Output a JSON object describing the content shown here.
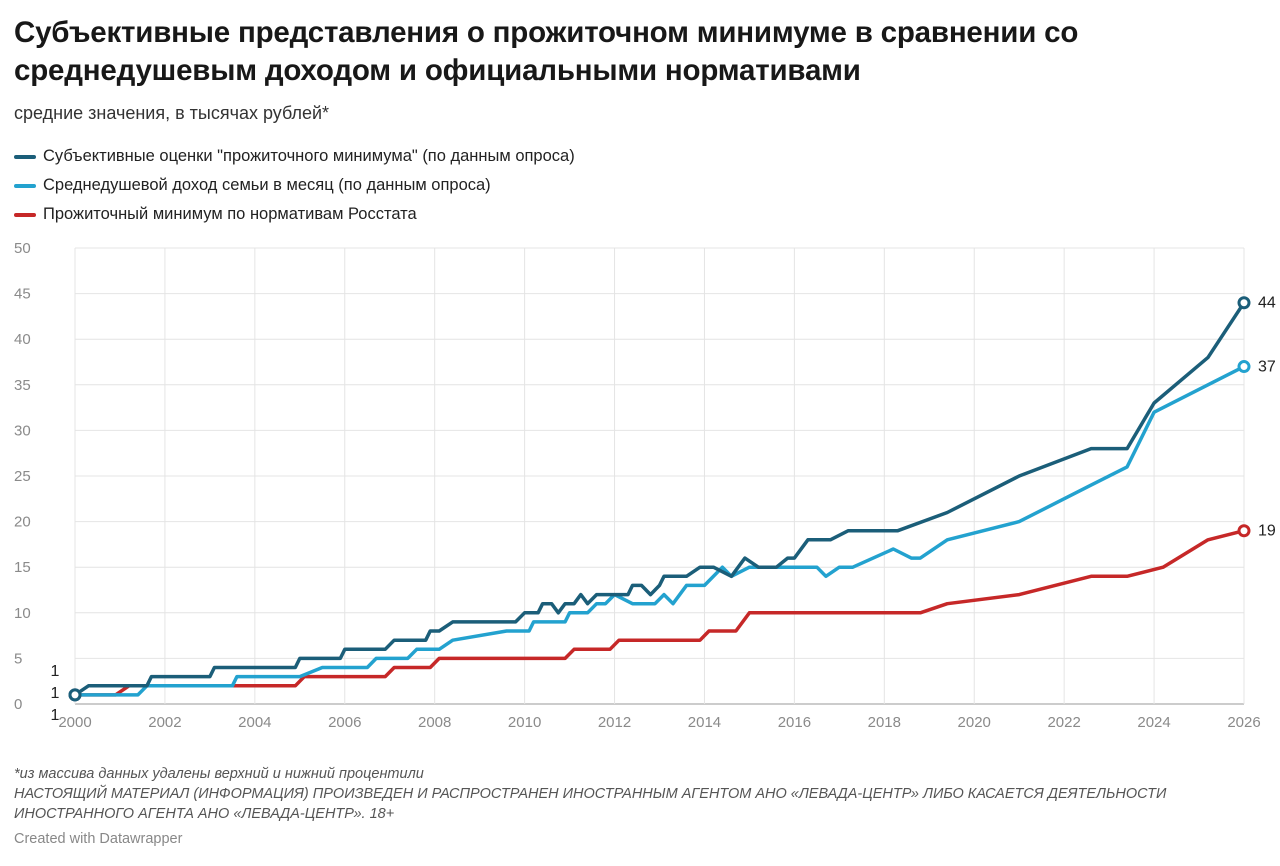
{
  "title": "Субъективные представления о прожиточном минимуме в сравнении со среднедушевым доходом и официальными нормативами",
  "subtitle": "средние значения, в тысячах рублей*",
  "notes": {
    "line1": "*из массива данных удалены верхний и нижний процентили",
    "line2": "НАСТОЯЩИЙ МАТЕРИАЛ (ИНФОРМАЦИЯ) ПРОИЗВЕДЕН И РАСПРОСТРАНЕН ИНОСТРАННЫМ АГЕНТОМ АНО «ЛЕВАДА-ЦЕНТР» ЛИБО КАСАЕТСЯ ДЕЯТЕЛЬНОСТИ ИНОСТРАННОГО АГЕНТА АНО «ЛЕВАДА-ЦЕНТР». 18+"
  },
  "credit": "Created with Datawrapper",
  "chart_data": {
    "type": "line",
    "xlim": [
      2000,
      2026
    ],
    "ylim": [
      0,
      50
    ],
    "yticks": [
      0,
      5,
      10,
      15,
      20,
      25,
      30,
      35,
      40,
      45,
      50
    ],
    "xticks": [
      2000,
      2002,
      2004,
      2006,
      2008,
      2010,
      2012,
      2014,
      2016,
      2018,
      2020,
      2022,
      2024,
      2026
    ],
    "grid": true,
    "legend_position": "top-left",
    "series": [
      {
        "name": "Субъективные оценки \"прожиточного минимума\" (по данным опроса)",
        "color": "#1b5e79",
        "start_label": "1",
        "end_label": "44",
        "points": [
          [
            2000,
            1
          ],
          [
            2000.3,
            2
          ],
          [
            2001,
            2
          ],
          [
            2001.6,
            2
          ],
          [
            2001.7,
            3
          ],
          [
            2003,
            3
          ],
          [
            2003.1,
            4
          ],
          [
            2004.9,
            4
          ],
          [
            2005,
            5
          ],
          [
            2005.9,
            5
          ],
          [
            2006,
            6
          ],
          [
            2006.9,
            6
          ],
          [
            2007.1,
            7
          ],
          [
            2007.8,
            7
          ],
          [
            2007.9,
            8
          ],
          [
            2008.1,
            8
          ],
          [
            2008.4,
            9
          ],
          [
            2009.8,
            9
          ],
          [
            2010,
            10
          ],
          [
            2010.3,
            10
          ],
          [
            2010.4,
            11
          ],
          [
            2010.6,
            11
          ],
          [
            2010.75,
            10
          ],
          [
            2010.9,
            11
          ],
          [
            2011.1,
            11
          ],
          [
            2011.25,
            12
          ],
          [
            2011.4,
            11
          ],
          [
            2011.6,
            12
          ],
          [
            2012.3,
            12
          ],
          [
            2012.4,
            13
          ],
          [
            2012.6,
            13
          ],
          [
            2012.8,
            12
          ],
          [
            2013,
            13
          ],
          [
            2013.1,
            14
          ],
          [
            2013.6,
            14
          ],
          [
            2013.9,
            15
          ],
          [
            2014.2,
            15
          ],
          [
            2014.6,
            14
          ],
          [
            2014.9,
            16
          ],
          [
            2015.2,
            15
          ],
          [
            2015.6,
            15
          ],
          [
            2015.85,
            16
          ],
          [
            2016,
            16
          ],
          [
            2016.3,
            18
          ],
          [
            2016.8,
            18
          ],
          [
            2017.2,
            19
          ],
          [
            2018.3,
            19
          ],
          [
            2019.4,
            21
          ],
          [
            2021,
            25
          ],
          [
            2022.6,
            28
          ],
          [
            2023.4,
            28
          ],
          [
            2024,
            33
          ],
          [
            2025.2,
            38
          ],
          [
            2026,
            44
          ]
        ]
      },
      {
        "name": "Среднедушевой доход семьи в месяц (по данным опроса)",
        "color": "#23a2cf",
        "start_label": "1",
        "end_label": "37",
        "points": [
          [
            2000,
            1
          ],
          [
            2001.4,
            1
          ],
          [
            2001.6,
            2
          ],
          [
            2003.5,
            2
          ],
          [
            2003.6,
            3
          ],
          [
            2005,
            3
          ],
          [
            2005.5,
            4
          ],
          [
            2006.5,
            4
          ],
          [
            2006.7,
            5
          ],
          [
            2007.4,
            5
          ],
          [
            2007.6,
            6
          ],
          [
            2008.1,
            6
          ],
          [
            2008.4,
            7
          ],
          [
            2009.6,
            8
          ],
          [
            2010.1,
            8
          ],
          [
            2010.2,
            9
          ],
          [
            2010.9,
            9
          ],
          [
            2011,
            10
          ],
          [
            2011.4,
            10
          ],
          [
            2011.6,
            11
          ],
          [
            2011.8,
            11
          ],
          [
            2012,
            12
          ],
          [
            2012.4,
            11
          ],
          [
            2012.9,
            11
          ],
          [
            2013.1,
            12
          ],
          [
            2013.3,
            11
          ],
          [
            2013.6,
            13
          ],
          [
            2014,
            13
          ],
          [
            2014.4,
            15
          ],
          [
            2014.6,
            14
          ],
          [
            2015,
            15
          ],
          [
            2016.5,
            15
          ],
          [
            2016.7,
            14
          ],
          [
            2017,
            15
          ],
          [
            2017.3,
            15
          ],
          [
            2018.2,
            17
          ],
          [
            2018.6,
            16
          ],
          [
            2018.8,
            16
          ],
          [
            2019.4,
            18
          ],
          [
            2021,
            20
          ],
          [
            2022.6,
            24
          ],
          [
            2023.4,
            26
          ],
          [
            2024,
            32
          ],
          [
            2025.2,
            35
          ],
          [
            2026,
            37
          ]
        ]
      },
      {
        "name": "Прожиточный минимум по нормативам Росстата",
        "color": "#c62828",
        "start_label": "1",
        "end_label": "19",
        "points": [
          [
            2000,
            1
          ],
          [
            2000.9,
            1
          ],
          [
            2001.2,
            2
          ],
          [
            2004.9,
            2
          ],
          [
            2005.1,
            3
          ],
          [
            2006.9,
            3
          ],
          [
            2007.1,
            4
          ],
          [
            2007.9,
            4
          ],
          [
            2008.1,
            5
          ],
          [
            2010.9,
            5
          ],
          [
            2011.1,
            6
          ],
          [
            2011.9,
            6
          ],
          [
            2012.1,
            7
          ],
          [
            2013.9,
            7
          ],
          [
            2014.1,
            8
          ],
          [
            2014.7,
            8
          ],
          [
            2015,
            10
          ],
          [
            2018.8,
            10
          ],
          [
            2019.4,
            11
          ],
          [
            2021,
            12
          ],
          [
            2022.6,
            14
          ],
          [
            2023.4,
            14
          ],
          [
            2024.2,
            15
          ],
          [
            2025.2,
            18
          ],
          [
            2026,
            19
          ]
        ]
      }
    ]
  }
}
